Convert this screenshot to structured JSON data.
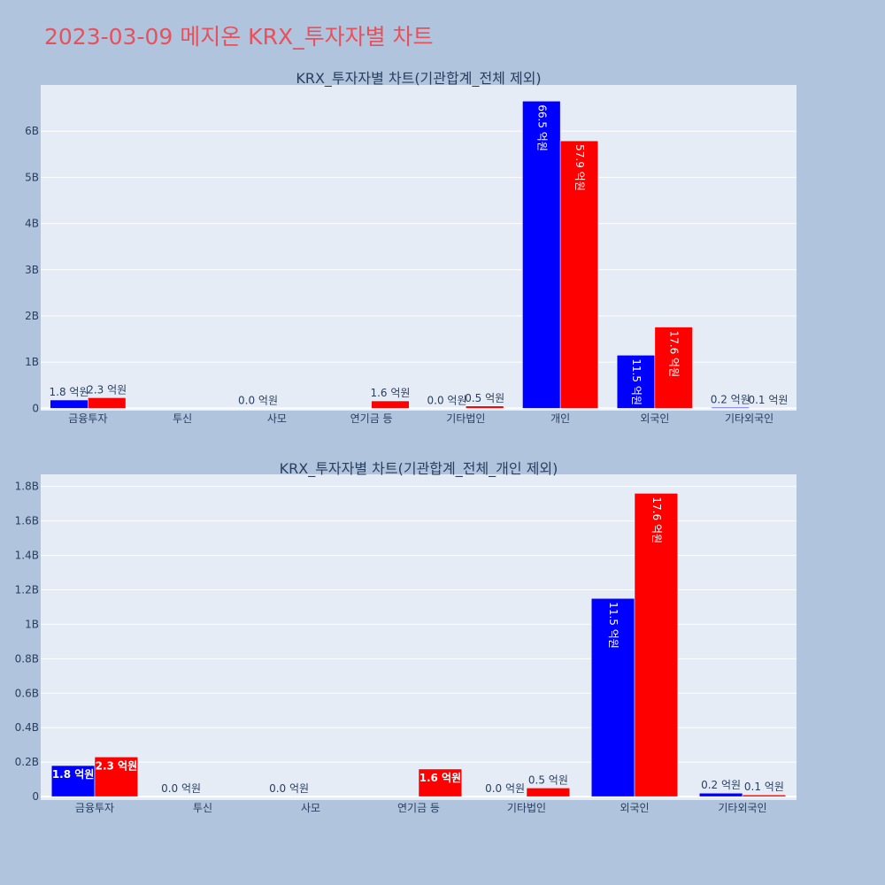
{
  "page": {
    "title": "2023-03-09 메지온 KRX_투자자별 차트",
    "background": "#b0c4de",
    "title_color": "#e8505b"
  },
  "series_colors": {
    "buy": "#0000ff",
    "sell": "#ff0000"
  },
  "chart_data": [
    {
      "type": "bar",
      "title": "KRX_투자자별 차트(기관합계_전체 제외)",
      "categories": [
        "금융투자",
        "투신",
        "사모",
        "연기금 등",
        "기타법인",
        "개인",
        "외국인",
        "기타외국인"
      ],
      "series": [
        {
          "values": [
            180000000,
            null,
            0,
            null,
            0,
            6650000000,
            1150000000,
            20000000
          ],
          "labels": [
            "1.8 억원",
            "",
            "0.0 억원",
            "",
            "0.0 억원",
            "66.5 억원",
            "11.5 억원",
            "0.2 억원"
          ]
        },
        {
          "values": [
            230000000,
            null,
            null,
            160000000,
            50000000,
            5790000000,
            1760000000,
            10000000
          ],
          "labels": [
            "2.3 억원",
            "",
            "",
            "1.6 억원",
            "0.5 억원",
            "57.9 억원",
            "17.6 억원",
            "0.1 억원"
          ]
        }
      ],
      "ylim": [
        -50000000,
        7000000000
      ],
      "yticks": [
        0,
        1000000000,
        2000000000,
        3000000000,
        4000000000,
        5000000000,
        6000000000
      ],
      "ytick_labels": [
        "0",
        "1B",
        "2B",
        "3B",
        "4B",
        "5B",
        "6B"
      ],
      "grid": true,
      "xlabel": "",
      "ylabel": ""
    },
    {
      "type": "bar",
      "title": "KRX_투자자별 차트(기관합계_전체_개인 제외)",
      "categories": [
        "금융투자",
        "투신",
        "사모",
        "연기금 등",
        "기타법인",
        "외국인",
        "기타외국인"
      ],
      "series": [
        {
          "values": [
            180000000,
            0,
            0,
            null,
            0,
            1150000000,
            20000000
          ],
          "labels": [
            "1.8 억원",
            "0.0 억원",
            "0.0 억원",
            "",
            "0.0 억원",
            "11.5 억원",
            "0.2 억원"
          ]
        },
        {
          "values": [
            230000000,
            null,
            null,
            160000000,
            50000000,
            1760000000,
            10000000
          ],
          "labels": [
            "2.3 억원",
            "",
            "",
            "1.6 억원",
            "0.5 억원",
            "17.6 억원",
            "0.1 억원"
          ]
        }
      ],
      "ylim": [
        -20000000,
        1870000000
      ],
      "yticks": [
        0,
        200000000,
        400000000,
        600000000,
        800000000,
        1000000000,
        1200000000,
        1400000000,
        1600000000,
        1800000000
      ],
      "ytick_labels": [
        "0",
        "0.2B",
        "0.4B",
        "0.6B",
        "0.8B",
        "1B",
        "1.2B",
        "1.4B",
        "1.6B",
        "1.8B"
      ],
      "grid": true,
      "xlabel": "",
      "ylabel": ""
    }
  ]
}
